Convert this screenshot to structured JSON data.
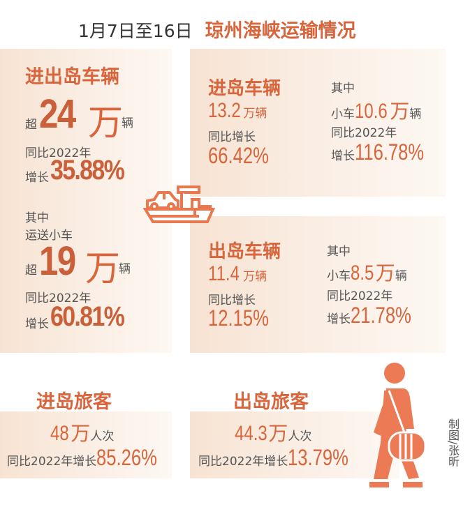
{
  "title": {
    "date": "1月7日至16日",
    "topic": "琼州海峡运输情况"
  },
  "total": {
    "heading": "进出岛车辆",
    "prefix": "超",
    "number": "24",
    "unit_wan": "万",
    "unit": "辆",
    "compare": "同比2022年",
    "growth_label": "增长",
    "growth": "35.88%",
    "sub_heading1": "其中",
    "sub_heading2": "运送小车",
    "sub_prefix": "超",
    "sub_number": "19",
    "sub_unit_wan": "万",
    "sub_unit": "辆",
    "sub_compare": "同比2022年",
    "sub_growth_label": "增长",
    "sub_growth": "60.81%"
  },
  "inbound": {
    "heading": "进岛车辆",
    "number": "13.2",
    "unit": "万辆",
    "compare": "同比增长",
    "growth": "66.42%",
    "among": "其中",
    "small_label": "小车",
    "small_number": "10.6",
    "small_unit_wan": "万",
    "small_unit": "辆",
    "small_compare": "同比2022年",
    "small_growth_label": "增长",
    "small_growth": "116.78%"
  },
  "outbound": {
    "heading": "出岛车辆",
    "number": "11.4",
    "unit": "万辆",
    "compare": "同比增长",
    "growth": "12.15%",
    "among": "其中",
    "small_label": "小车",
    "small_number": "8.5",
    "small_unit_wan": "万",
    "small_unit": "辆",
    "small_compare": "同比2022年",
    "small_growth_label": "增长",
    "small_growth": "21.78%"
  },
  "passengers_in": {
    "heading": "进岛旅客",
    "number": "48",
    "unit_wan": "万",
    "unit": "人次",
    "compare": "同比2022年增长",
    "growth": "85.26%"
  },
  "passengers_out": {
    "heading": "出岛旅客",
    "number": "44.3",
    "unit_wan": "万",
    "unit": "人次",
    "compare": "同比2022年增长",
    "growth": "13.79%"
  },
  "credit": "制图/张昕",
  "colors": {
    "accent": "#d8653c",
    "number": "#c9603a",
    "icon": "#ec7a55"
  }
}
